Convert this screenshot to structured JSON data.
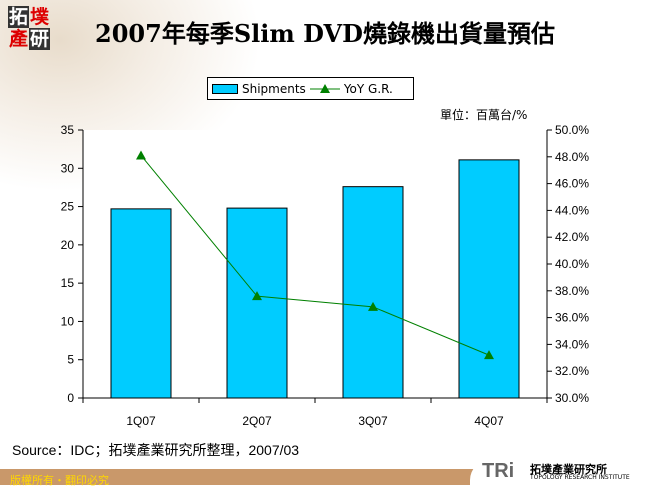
{
  "header": {
    "title": "2007年每季Slim DVD燒錄機出貨量預估",
    "logo_text": "拓墣產研"
  },
  "unit_label": "單位：百萬台/%",
  "source": "Source：IDC；拓墣產業研究所整理，2007/03",
  "footer": {
    "copyright": "版權所有・翻印必究",
    "brand": "TRi",
    "brand_cn": "拓墣產業研究所",
    "brand_en": "TOPOLOGY RESEARCH INSTITUTE"
  },
  "chart_data": {
    "type": "bar",
    "categories": [
      "1Q07",
      "2Q07",
      "3Q07",
      "4Q07"
    ],
    "series": [
      {
        "name": "Shipments",
        "type": "bar",
        "axis": "left",
        "color": "#00ccff",
        "values": [
          24.7,
          24.8,
          27.6,
          31.1
        ]
      },
      {
        "name": "YoY G.R.",
        "type": "line",
        "axis": "right",
        "color": "#008000",
        "marker": "triangle",
        "values": [
          48.1,
          37.6,
          36.8,
          33.2
        ]
      }
    ],
    "y_left": {
      "range": [
        0,
        35
      ],
      "ticks": [
        "0",
        "5",
        "10",
        "15",
        "20",
        "25",
        "30",
        "35"
      ]
    },
    "y_right": {
      "range": [
        30,
        50
      ],
      "ticks": [
        "30.0%",
        "32.0%",
        "34.0%",
        "36.0%",
        "38.0%",
        "40.0%",
        "42.0%",
        "44.0%",
        "46.0%",
        "48.0%",
        "50.0%"
      ]
    },
    "legend": "top",
    "grid": false
  }
}
